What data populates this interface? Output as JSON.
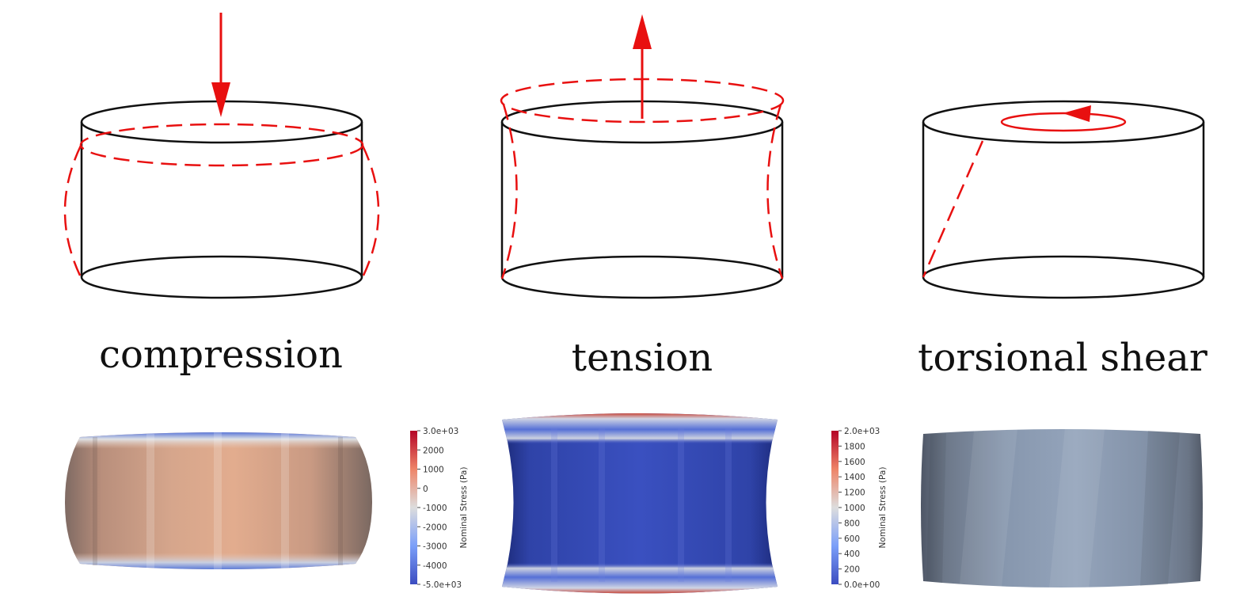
{
  "labels": {
    "compression": "compression",
    "tension": "tension",
    "shear": "torsional shear"
  },
  "colorbar_compression": {
    "title": "Nominal Stress (Pa)",
    "ticks": [
      "3.0e+03",
      "2000",
      "1000",
      "0",
      "-1000",
      "-2000",
      "-3000",
      "-4000",
      "-5.0e+03"
    ]
  },
  "colorbar_tension": {
    "title": "Nominal Stress (Pa)",
    "ticks": [
      "2.0e+03",
      "1800",
      "1600",
      "1400",
      "1200",
      "1000",
      "800",
      "600",
      "400",
      "200",
      "0.0e+00"
    ]
  },
  "colors": {
    "deformation": "#e81010",
    "outline": "#111111",
    "stress_low": "#3b4cc0",
    "stress_mid": "#dddddd",
    "stress_high": "#b40426",
    "shear_body": "#8b9db5"
  }
}
